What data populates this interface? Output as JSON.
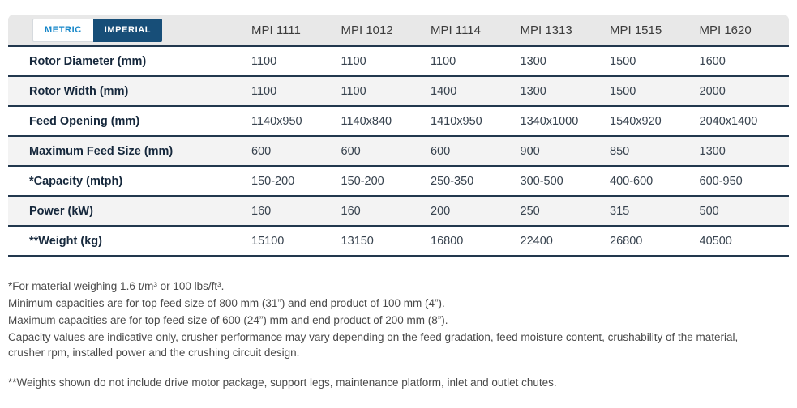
{
  "unit_toggle": {
    "metric_label": "METRIC",
    "imperial_label": "IMPERIAL",
    "active": "metric"
  },
  "table": {
    "columns": [
      "MPI 1111",
      "MPI 1012",
      "MPI 1114",
      "MPI 1313",
      "MPI 1515",
      "MPI 1620"
    ],
    "rows": [
      {
        "label": "Rotor Diameter (mm)",
        "values": [
          "1100",
          "1100",
          "1100",
          "1300",
          "1500",
          "1600"
        ]
      },
      {
        "label": "Rotor Width (mm)",
        "values": [
          "1100",
          "1100",
          "1400",
          "1300",
          "1500",
          "2000"
        ]
      },
      {
        "label": "Feed Opening (mm)",
        "values": [
          "1140x950",
          "1140x840",
          "1410x950",
          "1340x1000",
          "1540x920",
          "2040x1400"
        ]
      },
      {
        "label": "Maximum Feed Size (mm)",
        "values": [
          "600",
          "600",
          "600",
          "900",
          "850",
          "1300"
        ]
      },
      {
        "label": "*Capacity (mtph)",
        "values": [
          "150-200",
          "150-200",
          "250-350",
          "300-500",
          "400-600",
          "600-950"
        ]
      },
      {
        "label": "Power (kW)",
        "values": [
          "160",
          "160",
          "200",
          "250",
          "315",
          "500"
        ]
      },
      {
        "label": "**Weight (kg)",
        "values": [
          "15100",
          "13150",
          "16800",
          "22400",
          "26800",
          "40500"
        ]
      }
    ]
  },
  "footnotes": [
    "*For material weighing 1.6 t/m³ or 100 lbs/ft³.",
    "Minimum capacities are for top feed size of 800 mm (31”) and end product of 100 mm (4”).",
    "Maximum capacities are for top feed size of 600 (24”) mm and end product of 200 mm (8”).",
    "Capacity values are indicative only, crusher performance may vary depending on the feed gradation, feed moisture content, crushability of the material, crusher rpm, installed power and the crushing circuit design.",
    "**Weights shown do not include drive motor package, support legs, maintenance platform, inlet and outlet chutes."
  ],
  "colors": {
    "accent_blue": "#1787c9",
    "navy": "#174e78",
    "header_gray": "#e8e8e8",
    "row_alt_gray": "#f3f3f3",
    "separator": "#22384e"
  }
}
